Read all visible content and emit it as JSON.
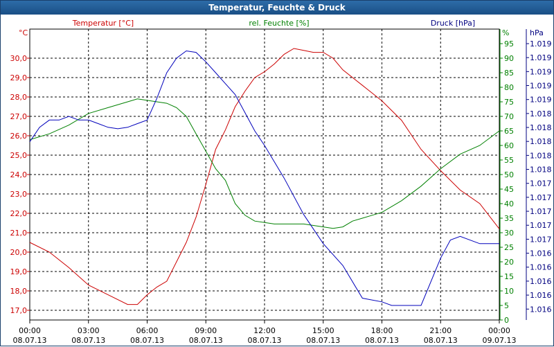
{
  "window": {
    "title": "Temperatur, Feuchte & Druck"
  },
  "chart_data": {
    "type": "line",
    "title": "Temperatur, Feuchte & Druck",
    "colors": {
      "temperature": "#cc0000",
      "humidity": "#008000",
      "pressure": "#0000bb",
      "grid": "#000000"
    },
    "axes": {
      "left": {
        "name": "Temperatur [°C]",
        "unit": "°C",
        "range": [
          16.5,
          31.5
        ],
        "ticks": [
          "17,0",
          "18,0",
          "19,0",
          "20,0",
          "21,0",
          "22,0",
          "23,0",
          "24,0",
          "25,0",
          "26,0",
          "27,0",
          "28,0",
          "29,0",
          "30,0"
        ]
      },
      "right1": {
        "name": "rel. Feuchte [%]",
        "unit": "%",
        "range": [
          0,
          100
        ],
        "ticks": [
          "0",
          "5",
          "10",
          "15",
          "20",
          "25",
          "30",
          "35",
          "40",
          "45",
          "50",
          "55",
          "60",
          "65",
          "70",
          "75",
          "80",
          "85",
          "90",
          "95"
        ]
      },
      "right2": {
        "name": "Druck [hPa]",
        "unit": "hPa",
        "range": [
          1015.75,
          1019.75
        ],
        "ticks": [
          "1.016",
          "1.016",
          "1.016",
          "1.016",
          "1.016",
          "1.017",
          "1.017",
          "1.017",
          "1.017",
          "1.017",
          "1.018",
          "1.018",
          "1.018",
          "1.018",
          "1.018",
          "1.019",
          "1.019",
          "1.019",
          "1.019",
          "1.019"
        ]
      }
    },
    "x_ticks": [
      {
        "time": "00:00",
        "date": "08.07.13"
      },
      {
        "time": "03:00",
        "date": "08.07.13"
      },
      {
        "time": "06:00",
        "date": "08.07.13"
      },
      {
        "time": "09:00",
        "date": "08.07.13"
      },
      {
        "time": "12:00",
        "date": "08.07.13"
      },
      {
        "time": "15:00",
        "date": "08.07.13"
      },
      {
        "time": "18:00",
        "date": "08.07.13"
      },
      {
        "time": "21:00",
        "date": "08.07.13"
      },
      {
        "time": "00:00",
        "date": "09.07.13"
      }
    ],
    "xlim": [
      0,
      24
    ],
    "grid": true,
    "series": [
      {
        "name": "Temperatur [°C]",
        "axis": "left",
        "color": "#cc0000",
        "x": [
          0,
          1,
          2,
          3,
          4,
          5,
          5.5,
          6,
          6.5,
          7,
          7.5,
          8,
          8.5,
          9,
          9.5,
          10,
          10.5,
          11,
          11.5,
          12,
          12.5,
          13,
          13.5,
          14,
          14.5,
          15,
          15.5,
          16,
          16.5,
          17,
          17.5,
          18,
          19,
          20,
          21,
          22,
          23,
          24
        ],
        "y": [
          20.5,
          20.0,
          19.2,
          18.3,
          17.8,
          17.3,
          17.3,
          17.8,
          18.2,
          18.5,
          19.5,
          20.5,
          21.8,
          23.5,
          25.3,
          26.3,
          27.5,
          28.3,
          29.0,
          29.3,
          29.7,
          30.2,
          30.5,
          30.4,
          30.3,
          30.3,
          30.0,
          29.4,
          29.0,
          28.6,
          28.2,
          27.8,
          26.8,
          25.3,
          24.2,
          23.2,
          22.5,
          21.2
        ]
      },
      {
        "name": "rel. Feuchte [%]",
        "axis": "right1",
        "color": "#008000",
        "x": [
          0,
          1,
          2,
          3,
          4,
          5,
          5.5,
          6,
          6.5,
          7,
          7.5,
          8,
          8.5,
          9,
          9.5,
          10,
          10.5,
          11,
          11.5,
          12,
          12.5,
          13,
          13.5,
          14,
          14.5,
          15,
          15.5,
          16,
          16.5,
          17,
          17.5,
          18,
          19,
          20,
          21,
          22,
          23,
          24
        ],
        "y": [
          62,
          64,
          67,
          71,
          73,
          75,
          76,
          75.5,
          75,
          74.5,
          73,
          70,
          64,
          58,
          52,
          48,
          40,
          36,
          34,
          33.5,
          33,
          33,
          33,
          33,
          32.5,
          32,
          31.5,
          32,
          34,
          35,
          36,
          37,
          41,
          46,
          52,
          57,
          60,
          65
        ]
      },
      {
        "name": "Druck [hPa]",
        "axis": "right2",
        "color": "#0000bb",
        "x": [
          0,
          0.5,
          1,
          1.5,
          2,
          2.5,
          3,
          3.5,
          4,
          4.5,
          5,
          5.5,
          6,
          6.5,
          7,
          7.5,
          8,
          8.5,
          9,
          9.5,
          10,
          10.5,
          11,
          11.5,
          12,
          13,
          14,
          15,
          16,
          17,
          18,
          18.5,
          19,
          20,
          21,
          21.5,
          22,
          23,
          24
        ],
        "y": [
          1018.2,
          1018.4,
          1018.5,
          1018.5,
          1018.55,
          1018.5,
          1018.5,
          1018.45,
          1018.4,
          1018.38,
          1018.4,
          1018.45,
          1018.5,
          1018.8,
          1019.15,
          1019.35,
          1019.45,
          1019.43,
          1019.3,
          1019.15,
          1019.0,
          1018.85,
          1018.6,
          1018.35,
          1018.15,
          1017.7,
          1017.2,
          1016.8,
          1016.5,
          1016.05,
          1016.0,
          1015.95,
          1015.95,
          1015.95,
          1016.6,
          1016.85,
          1016.9,
          1016.8,
          1016.8
        ]
      }
    ]
  }
}
